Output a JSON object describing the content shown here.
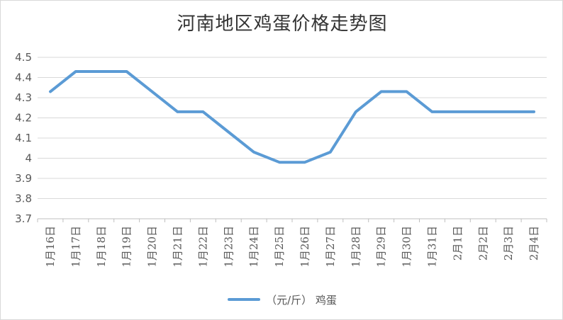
{
  "chart_data": {
    "type": "line",
    "title": "河南地区鸡蛋价格走势图",
    "xlabel": "",
    "ylabel": "",
    "categories": [
      "1月16日",
      "1月17日",
      "1月18日",
      "1月19日",
      "1月20日",
      "1月21日",
      "1月22日",
      "1月23日",
      "1月24日",
      "1月25日",
      "1月26日",
      "1月27日",
      "1月28日",
      "1月29日",
      "1月30日",
      "1月31日",
      "2月1日",
      "2月2日",
      "2月3日",
      "2月4日"
    ],
    "series": [
      {
        "name": "（元/斤） 鸡蛋",
        "values": [
          4.33,
          4.43,
          4.43,
          4.43,
          4.33,
          4.23,
          4.23,
          4.13,
          4.03,
          3.98,
          3.98,
          4.03,
          4.23,
          4.33,
          4.33,
          4.23,
          4.23,
          4.23,
          4.23,
          4.23
        ]
      }
    ],
    "ylim": [
      3.7,
      4.5
    ],
    "yticks": [
      "3.7",
      "3.8",
      "3.9",
      "4",
      "4.1",
      "4.2",
      "4.3",
      "4.4",
      "4.5"
    ],
    "grid": true,
    "legend": "bottom",
    "line_color": "#5b9bd5"
  }
}
